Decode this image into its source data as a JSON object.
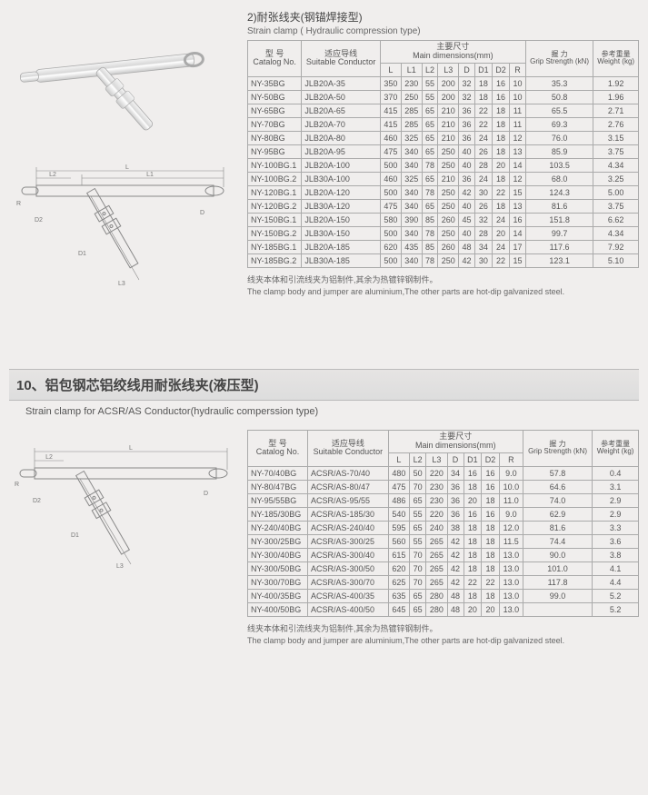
{
  "section1": {
    "title_cn": "2)耐张线夹(钢锚焊接型)",
    "title_en": "Strain clamp ( Hydraulic compression type)",
    "note_cn": "线夹本体和引流线夹为铝制件,其余为热镀锌钢制件。",
    "note_en": "The clamp body and jumper are aluminium,The other parts are hot-dip galvanized steel.",
    "headers": {
      "model_cn": "型 号",
      "model_en": "Catalog No.",
      "cond_cn": "适应导线",
      "cond_en": "Suitable Conductor",
      "dim_cn": "主要尺寸",
      "dim_en": "Main dimensions(mm)",
      "grip_cn": "握 力",
      "grip_en": "Grip Strength (kN)",
      "wt_cn": "参考重量",
      "wt_en": "Weight (kg)",
      "L": "L",
      "L1": "L1",
      "L2": "L2",
      "L3": "L3",
      "D": "D",
      "D1": "D1",
      "D2": "D2",
      "R": "R"
    },
    "rows": [
      [
        "NY-35BG",
        "JLB20A-35",
        "350",
        "230",
        "55",
        "200",
        "32",
        "18",
        "16",
        "10",
        "35.3",
        "1.92"
      ],
      [
        "NY-50BG",
        "JLB20A-50",
        "370",
        "250",
        "55",
        "200",
        "32",
        "18",
        "16",
        "10",
        "50.8",
        "1.96"
      ],
      [
        "NY-65BG",
        "JLB20A-65",
        "415",
        "285",
        "65",
        "210",
        "36",
        "22",
        "18",
        "11",
        "65.5",
        "2.71"
      ],
      [
        "NY-70BG",
        "JLB20A-70",
        "415",
        "285",
        "65",
        "210",
        "36",
        "22",
        "18",
        "11",
        "69.3",
        "2.76"
      ],
      [
        "NY-80BG",
        "JLB20A-80",
        "460",
        "325",
        "65",
        "210",
        "36",
        "24",
        "18",
        "12",
        "76.0",
        "3.15"
      ],
      [
        "NY-95BG",
        "JLB20A-95",
        "475",
        "340",
        "65",
        "250",
        "40",
        "26",
        "18",
        "13",
        "85.9",
        "3.75"
      ],
      [
        "NY-100BG.1",
        "JLB20A-100",
        "500",
        "340",
        "78",
        "250",
        "40",
        "28",
        "20",
        "14",
        "103.5",
        "4.34"
      ],
      [
        "NY-100BG.2",
        "JLB30A-100",
        "460",
        "325",
        "65",
        "210",
        "36",
        "24",
        "18",
        "12",
        "68.0",
        "3.25"
      ],
      [
        "NY-120BG.1",
        "JLB20A-120",
        "500",
        "340",
        "78",
        "250",
        "42",
        "30",
        "22",
        "15",
        "124.3",
        "5.00"
      ],
      [
        "NY-120BG.2",
        "JLB30A-120",
        "475",
        "340",
        "65",
        "250",
        "40",
        "26",
        "18",
        "13",
        "81.6",
        "3.75"
      ],
      [
        "NY-150BG.1",
        "JLB20A-150",
        "580",
        "390",
        "85",
        "260",
        "45",
        "32",
        "24",
        "16",
        "151.8",
        "6.62"
      ],
      [
        "NY-150BG.2",
        "JLB30A-150",
        "500",
        "340",
        "78",
        "250",
        "40",
        "28",
        "20",
        "14",
        "99.7",
        "4.34"
      ],
      [
        "NY-185BG.1",
        "JLB20A-185",
        "620",
        "435",
        "85",
        "260",
        "48",
        "34",
        "24",
        "17",
        "117.6",
        "7.92"
      ],
      [
        "NY-185BG.2",
        "JLB30A-185",
        "500",
        "340",
        "78",
        "250",
        "42",
        "30",
        "22",
        "15",
        "123.1",
        "5.10"
      ]
    ]
  },
  "section2": {
    "bigtitle": "10、铝包钢芯铝绞线用耐张线夹(液压型)",
    "bigsub": "Strain clamp for ACSR/AS Conductor(hydraulic comperssion type)",
    "note_cn": "线夹本体和引流线夹为铝制件,其余为热镀锌钢制件。",
    "note_en": "The clamp body and jumper are aluminium,The other parts are hot-dip galvanized steel.",
    "headers": {
      "model_cn": "型 号",
      "model_en": "Catalog No.",
      "cond_cn": "适应导线",
      "cond_en": "Suitable Conductor",
      "dim_cn": "主要尺寸",
      "dim_en": "Main dimensions(mm)",
      "grip_cn": "握 力",
      "grip_en": "Grip Strength (kN)",
      "wt_cn": "参考重量",
      "wt_en": "Weight (kg)",
      "L": "L",
      "L2": "L2",
      "L3": "L3",
      "D": "D",
      "D1": "D1",
      "D2": "D2",
      "R": "R"
    },
    "rows": [
      [
        "NY-70/40BG",
        "ACSR/AS-70/40",
        "480",
        "50",
        "220",
        "34",
        "16",
        "16",
        "9.0",
        "57.8",
        "0.4"
      ],
      [
        "NY-80/47BG",
        "ACSR/AS-80/47",
        "475",
        "70",
        "230",
        "36",
        "18",
        "16",
        "10.0",
        "64.6",
        "3.1"
      ],
      [
        "NY-95/55BG",
        "ACSR/AS-95/55",
        "486",
        "65",
        "230",
        "36",
        "20",
        "18",
        "11.0",
        "74.0",
        "2.9"
      ],
      [
        "NY-185/30BG",
        "ACSR/AS-185/30",
        "540",
        "55",
        "220",
        "36",
        "16",
        "16",
        "9.0",
        "62.9",
        "2.9"
      ],
      [
        "NY-240/40BG",
        "ACSR/AS-240/40",
        "595",
        "65",
        "240",
        "38",
        "18",
        "18",
        "12.0",
        "81.6",
        "3.3"
      ],
      [
        "NY-300/25BG",
        "ACSR/AS-300/25",
        "560",
        "55",
        "265",
        "42",
        "18",
        "18",
        "11.5",
        "74.4",
        "3.6"
      ],
      [
        "NY-300/40BG",
        "ACSR/AS-300/40",
        "615",
        "70",
        "265",
        "42",
        "18",
        "18",
        "13.0",
        "90.0",
        "3.8"
      ],
      [
        "NY-300/50BG",
        "ACSR/AS-300/50",
        "620",
        "70",
        "265",
        "42",
        "18",
        "18",
        "13.0",
        "101.0",
        "4.1"
      ],
      [
        "NY-300/70BG",
        "ACSR/AS-300/70",
        "625",
        "70",
        "265",
        "42",
        "22",
        "22",
        "13.0",
        "117.8",
        "4.4"
      ],
      [
        "NY-400/35BG",
        "ACSR/AS-400/35",
        "635",
        "65",
        "280",
        "48",
        "18",
        "18",
        "13.0",
        "99.0",
        "5.2"
      ],
      [
        "NY-400/50BG",
        "ACSR/AS-400/50",
        "645",
        "65",
        "280",
        "48",
        "20",
        "20",
        "13.0",
        "",
        "5.2"
      ]
    ]
  },
  "diagram_labels": {
    "L": "L",
    "L1": "L1",
    "L2": "L2",
    "L3": "L3",
    "D": "D",
    "D1": "D1",
    "D2": "D2",
    "R": "R"
  },
  "colors": {
    "page_bg": "#f0eeed",
    "border": "#aaaaaa",
    "text": "#555555",
    "line": "#888888"
  }
}
